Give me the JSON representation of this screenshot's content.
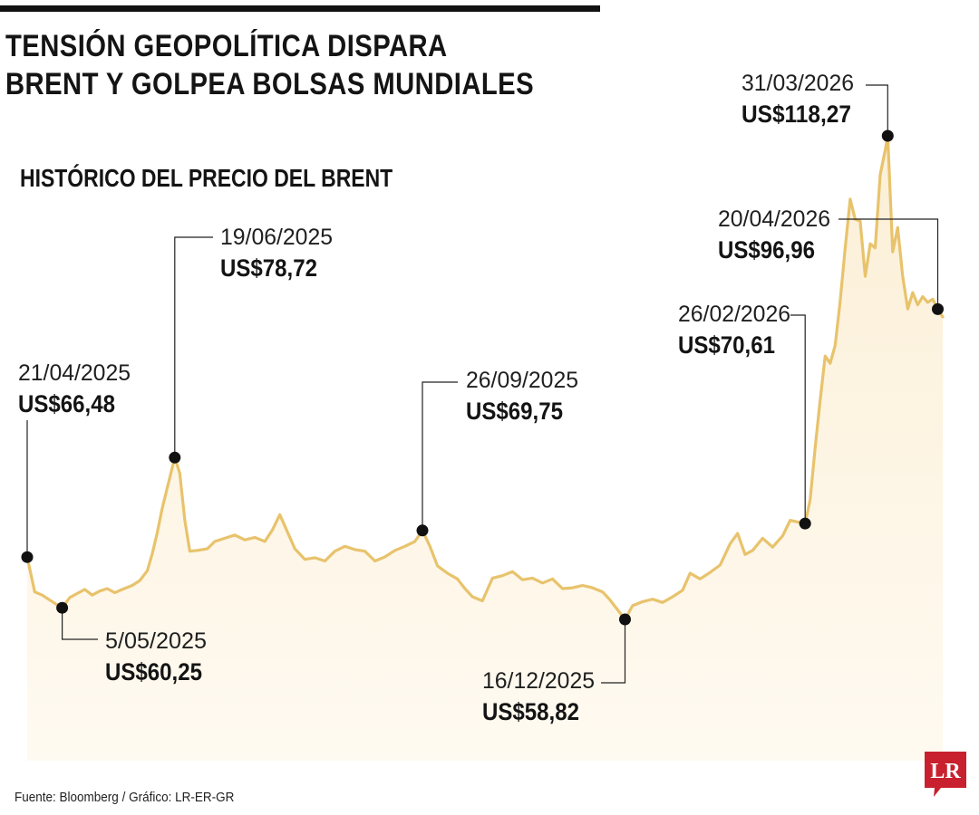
{
  "title_line1": "TENSIÓN GEOPOLÍTICA DISPARA",
  "title_line2": "BRENT Y GOLPEA BOLSAS MUNDIALES",
  "subtitle": "HISTÓRICO DEL PRECIO DEL BRENT",
  "source": "Fuente: Bloomberg / Gráfico: LR-ER-GR",
  "logo_text": "LR",
  "colors": {
    "line": "#e8c36c",
    "fill_top": "#fbefd6",
    "fill_bottom": "#fffaf1",
    "accent": "#c8202f",
    "marker": "#111111"
  },
  "chart_data": {
    "type": "line",
    "title": "HISTÓRICO DEL PRECIO DEL BRENT",
    "xlabel": "",
    "ylabel": "",
    "x_range": [
      "2025-04-21",
      "2026-04-22"
    ],
    "y_range": [
      52,
      121
    ],
    "grid": false,
    "points": [
      [
        "2025-04-21",
        66.48
      ],
      [
        "2025-04-24",
        62.2
      ],
      [
        "2025-04-27",
        61.8
      ],
      [
        "2025-04-30",
        61.2
      ],
      [
        "2025-05-02",
        60.8
      ],
      [
        "2025-05-05",
        60.25
      ],
      [
        "2025-05-08",
        61.5
      ],
      [
        "2025-05-11",
        62.0
      ],
      [
        "2025-05-14",
        62.5
      ],
      [
        "2025-05-17",
        61.8
      ],
      [
        "2025-05-20",
        62.3
      ],
      [
        "2025-05-23",
        62.6
      ],
      [
        "2025-05-26",
        62.1
      ],
      [
        "2025-05-29",
        62.5
      ],
      [
        "2025-06-02",
        63.0
      ],
      [
        "2025-06-05",
        63.6
      ],
      [
        "2025-06-08",
        64.8
      ],
      [
        "2025-06-10",
        66.9
      ],
      [
        "2025-06-12",
        69.5
      ],
      [
        "2025-06-14",
        72.5
      ],
      [
        "2025-06-16",
        75.0
      ],
      [
        "2025-06-19",
        78.72
      ],
      [
        "2025-06-21",
        76.8
      ],
      [
        "2025-06-23",
        71.0
      ],
      [
        "2025-06-25",
        67.2
      ],
      [
        "2025-06-28",
        67.3
      ],
      [
        "2025-07-02",
        67.5
      ],
      [
        "2025-07-05",
        68.4
      ],
      [
        "2025-07-09",
        68.8
      ],
      [
        "2025-07-13",
        69.2
      ],
      [
        "2025-07-17",
        68.6
      ],
      [
        "2025-07-21",
        68.9
      ],
      [
        "2025-07-25",
        68.4
      ],
      [
        "2025-07-28",
        69.8
      ],
      [
        "2025-07-31",
        71.7
      ],
      [
        "2025-08-03",
        69.6
      ],
      [
        "2025-08-06",
        67.5
      ],
      [
        "2025-08-10",
        66.2
      ],
      [
        "2025-08-14",
        66.4
      ],
      [
        "2025-08-18",
        66.0
      ],
      [
        "2025-08-22",
        67.2
      ],
      [
        "2025-08-26",
        67.8
      ],
      [
        "2025-08-30",
        67.4
      ],
      [
        "2025-09-03",
        67.2
      ],
      [
        "2025-09-07",
        66.0
      ],
      [
        "2025-09-11",
        66.5
      ],
      [
        "2025-09-15",
        67.3
      ],
      [
        "2025-09-19",
        67.8
      ],
      [
        "2025-09-23",
        68.4
      ],
      [
        "2025-09-26",
        69.75
      ],
      [
        "2025-09-29",
        67.8
      ],
      [
        "2025-10-02",
        65.4
      ],
      [
        "2025-10-06",
        64.5
      ],
      [
        "2025-10-10",
        63.8
      ],
      [
        "2025-10-13",
        62.6
      ],
      [
        "2025-10-16",
        61.6
      ],
      [
        "2025-10-20",
        61.1
      ],
      [
        "2025-10-24",
        63.9
      ],
      [
        "2025-10-28",
        64.2
      ],
      [
        "2025-11-01",
        64.7
      ],
      [
        "2025-11-05",
        63.7
      ],
      [
        "2025-11-09",
        63.9
      ],
      [
        "2025-11-13",
        63.3
      ],
      [
        "2025-11-17",
        63.8
      ],
      [
        "2025-11-21",
        62.6
      ],
      [
        "2025-11-25",
        62.7
      ],
      [
        "2025-11-29",
        63.0
      ],
      [
        "2025-12-03",
        62.7
      ],
      [
        "2025-12-07",
        62.2
      ],
      [
        "2025-12-10",
        61.2
      ],
      [
        "2025-12-13",
        60.0
      ],
      [
        "2025-12-16",
        58.82
      ],
      [
        "2025-12-19",
        60.5
      ],
      [
        "2025-12-23",
        61.0
      ],
      [
        "2025-12-27",
        61.3
      ],
      [
        "2025-12-31",
        60.9
      ],
      [
        "2026-01-04",
        61.6
      ],
      [
        "2026-01-08",
        62.4
      ],
      [
        "2026-01-11",
        64.5
      ],
      [
        "2026-01-15",
        63.8
      ],
      [
        "2026-01-19",
        64.6
      ],
      [
        "2026-01-23",
        65.5
      ],
      [
        "2026-01-27",
        68.1
      ],
      [
        "2026-01-30",
        69.4
      ],
      [
        "2026-02-02",
        66.8
      ],
      [
        "2026-02-05",
        67.3
      ],
      [
        "2026-02-09",
        68.8
      ],
      [
        "2026-02-13",
        67.7
      ],
      [
        "2026-02-17",
        69.1
      ],
      [
        "2026-02-20",
        71.0
      ],
      [
        "2026-02-23",
        70.8
      ],
      [
        "2026-02-26",
        70.61
      ],
      [
        "2026-02-28",
        73.5
      ],
      [
        "2026-03-02",
        80.0
      ],
      [
        "2026-03-04",
        85.8
      ],
      [
        "2026-03-06",
        91.2
      ],
      [
        "2026-03-08",
        90.3
      ],
      [
        "2026-03-10",
        92.5
      ],
      [
        "2026-03-12",
        98.0
      ],
      [
        "2026-03-14",
        104.5
      ],
      [
        "2026-03-16",
        110.5
      ],
      [
        "2026-03-18",
        108.0
      ],
      [
        "2026-03-20",
        107.8
      ],
      [
        "2026-03-22",
        101.0
      ],
      [
        "2026-03-24",
        105.0
      ],
      [
        "2026-03-26",
        104.5
      ],
      [
        "2026-03-28",
        113.5
      ],
      [
        "2026-03-30",
        116.5
      ],
      [
        "2026-03-31",
        118.27
      ],
      [
        "2026-04-02",
        104.0
      ],
      [
        "2026-04-04",
        107.0
      ],
      [
        "2026-04-06",
        101.0
      ],
      [
        "2026-04-08",
        97.0
      ],
      [
        "2026-04-10",
        99.0
      ],
      [
        "2026-04-12",
        97.5
      ],
      [
        "2026-04-14",
        98.5
      ],
      [
        "2026-04-16",
        97.8
      ],
      [
        "2026-04-18",
        98.2
      ],
      [
        "2026-04-20",
        96.96
      ],
      [
        "2026-04-22",
        96.0
      ]
    ],
    "annotations": [
      {
        "date": "2025-04-21",
        "label": "21/04/2025",
        "value_label": "US$66,48",
        "value": 66.48
      },
      {
        "date": "2025-05-05",
        "label": "5/05/2025",
        "value_label": "US$60,25",
        "value": 60.25
      },
      {
        "date": "2025-06-19",
        "label": "19/06/2025",
        "value_label": "US$78,72",
        "value": 78.72
      },
      {
        "date": "2025-09-26",
        "label": "26/09/2025",
        "value_label": "US$69,75",
        "value": 69.75
      },
      {
        "date": "2025-12-16",
        "label": "16/12/2025",
        "value_label": "US$58,82",
        "value": 58.82
      },
      {
        "date": "2026-02-26",
        "label": "26/02/2026",
        "value_label": "US$70,61",
        "value": 70.61
      },
      {
        "date": "2026-03-31",
        "label": "31/03/2026",
        "value_label": "US$118,27",
        "value": 118.27
      },
      {
        "date": "2026-04-20",
        "label": "20/04/2026",
        "value_label": "US$96,96",
        "value": 96.96
      }
    ]
  }
}
